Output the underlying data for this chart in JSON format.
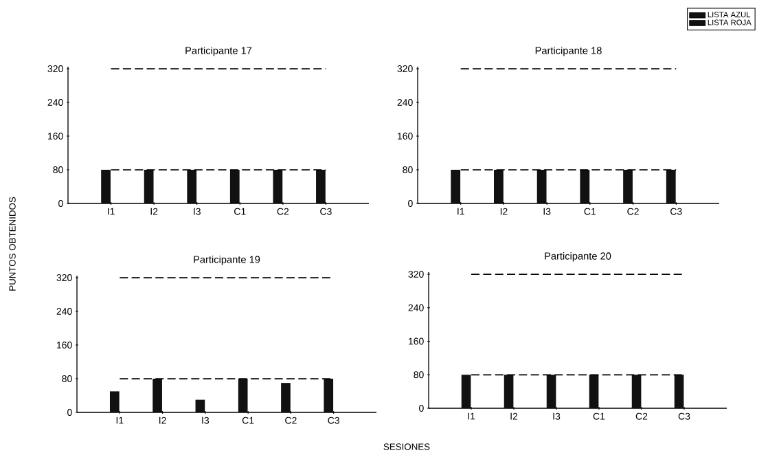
{
  "chart_data": [
    {
      "type": "bar",
      "title": "Participante 17",
      "categories": [
        "I1",
        "I2",
        "I3",
        "C1",
        "C2",
        "C3"
      ],
      "series": [
        {
          "color": "#111111",
          "values": [
            80,
            80,
            80,
            80,
            80,
            80
          ]
        },
        {
          "color": "#111111",
          "values": [
            null,
            null,
            null,
            null,
            null,
            null
          ]
        }
      ],
      "ylim": [
        0,
        325
      ],
      "yticks": [
        0,
        80,
        160,
        240,
        320
      ],
      "ref_lines": [
        {
          "axis": "y",
          "value": 80,
          "line_style": "dashed"
        },
        {
          "axis": "y",
          "value": 320,
          "line_style": "dashed"
        }
      ]
    },
    {
      "type": "bar",
      "title": "Participante 18",
      "categories": [
        "I1",
        "I2",
        "I3",
        "C1",
        "C2",
        "C3"
      ],
      "series": [
        {
          "name": "LISTA AZUL",
          "color": "#111111",
          "values": [
            80,
            80,
            80,
            80,
            80,
            80
          ]
        },
        {
          "name": "LISTA ROJA",
          "color": "#111111",
          "values": [
            null,
            null,
            null,
            null,
            null,
            null
          ]
        }
      ],
      "ylim": [
        0,
        325
      ],
      "yticks": [
        0,
        80,
        160,
        240,
        320
      ],
      "legend": "top right",
      "ref_lines": [
        {
          "axis": "y",
          "value": 80,
          "line_style": "dashed"
        },
        {
          "axis": "y",
          "value": 320,
          "line_style": "dashed"
        }
      ]
    },
    {
      "type": "bar",
      "title": "Participante 19",
      "categories": [
        "I1",
        "I2",
        "I3",
        "C1",
        "C2",
        "C3"
      ],
      "xlabel": "SESIONES",
      "ylabel": "PUNTOS OBTENIDOS",
      "series": [
        {
          "color": "#111111",
          "values": [
            50,
            80,
            30,
            80,
            70,
            80
          ]
        },
        {
          "color": "#111111",
          "values": [
            null,
            null,
            null,
            null,
            null,
            null
          ]
        }
      ],
      "ylim": [
        0,
        325
      ],
      "yticks": [
        0,
        80,
        160,
        240,
        320
      ],
      "ref_lines": [
        {
          "axis": "y",
          "value": 80,
          "line_style": "dashed"
        },
        {
          "axis": "y",
          "value": 320,
          "line_style": "dashed"
        }
      ]
    },
    {
      "type": "bar",
      "title": "Participante 20",
      "categories": [
        "I1",
        "I2",
        "I3",
        "C1",
        "C2",
        "C3"
      ],
      "series": [
        {
          "color": "#111111",
          "values": [
            80,
            80,
            80,
            80,
            80,
            80
          ]
        },
        {
          "color": "#111111",
          "values": [
            null,
            null,
            null,
            null,
            null,
            null
          ]
        }
      ],
      "ylim": [
        0,
        325
      ],
      "yticks": [
        0,
        80,
        160,
        240,
        320
      ],
      "ref_lines": [
        {
          "axis": "y",
          "value": 80,
          "line_style": "dashed"
        },
        {
          "axis": "y",
          "value": 320,
          "line_style": "dashed"
        }
      ]
    }
  ]
}
